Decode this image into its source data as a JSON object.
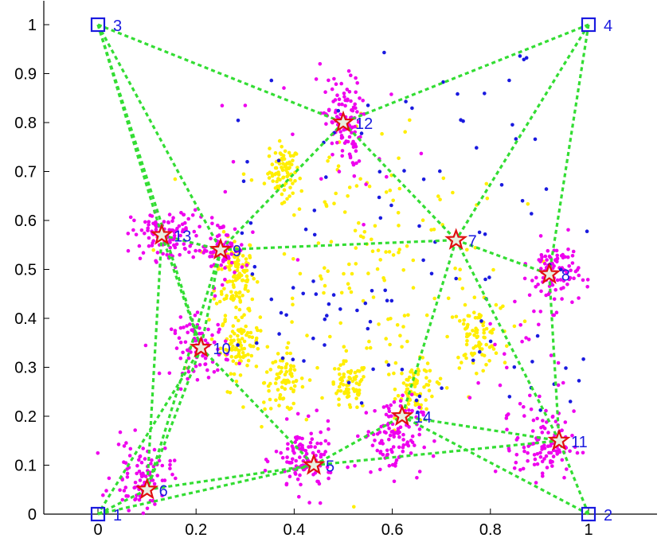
{
  "chart_data": {
    "type": "scatter",
    "title": "",
    "xlabel": "",
    "ylabel": "",
    "xlim": [
      -0.15,
      1.1
    ],
    "ylim": [
      0,
      1
    ],
    "x_ticks": [
      "0",
      "0.2",
      "0.4",
      "0.6",
      "0.8",
      "1"
    ],
    "x_tick_values": [
      0,
      0.2,
      0.4,
      0.6,
      0.8,
      1
    ],
    "y_ticks": [
      "0",
      "0.1",
      "0.2",
      "0.3",
      "0.4",
      "0.5",
      "0.6",
      "0.7",
      "0.8",
      "0.9",
      "1"
    ],
    "y_tick_values": [
      0,
      0.1,
      0.2,
      0.3,
      0.4,
      0.5,
      0.6,
      0.7,
      0.8,
      0.9,
      1
    ],
    "grid": false,
    "colors": {
      "anchor": "#1a1adf",
      "estimated_star_stroke": "#e01010",
      "estimated_star_fill": "#e8f0e0",
      "edges": "#33dd33",
      "cloud_magenta": "#ee00ee",
      "cloud_yellow": "#ffee00",
      "cloud_blue": "#1a1adf"
    },
    "anchors": [
      {
        "label": "1",
        "x": 0.0,
        "y": 0.0
      },
      {
        "label": "2",
        "x": 1.0,
        "y": 0.0
      },
      {
        "label": "3",
        "x": 0.0,
        "y": 1.0
      },
      {
        "label": "4",
        "x": 1.0,
        "y": 1.0
      }
    ],
    "estimated_nodes": [
      {
        "label": "5",
        "x": 0.44,
        "y": 0.1
      },
      {
        "label": "6",
        "x": 0.1,
        "y": 0.05
      },
      {
        "label": "7",
        "x": 0.73,
        "y": 0.56
      },
      {
        "label": "8",
        "x": 0.92,
        "y": 0.49
      },
      {
        "label": "9",
        "x": 0.25,
        "y": 0.54
      },
      {
        "label": "10",
        "x": 0.21,
        "y": 0.34
      },
      {
        "label": "11",
        "x": 0.94,
        "y": 0.15
      },
      {
        "label": "12",
        "x": 0.5,
        "y": 0.8
      },
      {
        "label": "13",
        "x": 0.13,
        "y": 0.57
      },
      {
        "label": "14",
        "x": 0.62,
        "y": 0.2
      }
    ],
    "edges": [
      [
        "3",
        "12"
      ],
      [
        "4",
        "12"
      ],
      [
        "3",
        "13"
      ],
      [
        "3",
        "9"
      ],
      [
        "3",
        "10"
      ],
      [
        "4",
        "7"
      ],
      [
        "4",
        "8"
      ],
      [
        "12",
        "9"
      ],
      [
        "12",
        "7"
      ],
      [
        "13",
        "9"
      ],
      [
        "13",
        "10"
      ],
      [
        "13",
        "6"
      ],
      [
        "9",
        "7"
      ],
      [
        "9",
        "10"
      ],
      [
        "9",
        "6"
      ],
      [
        "7",
        "8"
      ],
      [
        "7",
        "11"
      ],
      [
        "7",
        "14"
      ],
      [
        "8",
        "11"
      ],
      [
        "10",
        "5"
      ],
      [
        "10",
        "6"
      ],
      [
        "10",
        "1"
      ],
      [
        "6",
        "5"
      ],
      [
        "6",
        "1"
      ],
      [
        "1",
        "5"
      ],
      [
        "5",
        "14"
      ],
      [
        "5",
        "11"
      ],
      [
        "14",
        "11"
      ],
      [
        "2",
        "11"
      ],
      [
        "2",
        "14"
      ]
    ],
    "magenta_clusters": [
      {
        "x": 0.5,
        "y": 0.8,
        "sx": 0.018,
        "sy": 0.045,
        "n": 110
      },
      {
        "x": 0.14,
        "y": 0.57,
        "sx": 0.035,
        "sy": 0.025,
        "n": 110
      },
      {
        "x": 0.25,
        "y": 0.54,
        "sx": 0.025,
        "sy": 0.03,
        "n": 70
      },
      {
        "x": 0.21,
        "y": 0.34,
        "sx": 0.03,
        "sy": 0.03,
        "n": 90
      },
      {
        "x": 0.93,
        "y": 0.49,
        "sx": 0.025,
        "sy": 0.035,
        "n": 100
      },
      {
        "x": 0.42,
        "y": 0.11,
        "sx": 0.03,
        "sy": 0.035,
        "n": 110
      },
      {
        "x": 0.09,
        "y": 0.08,
        "sx": 0.03,
        "sy": 0.035,
        "n": 90
      },
      {
        "x": 0.6,
        "y": 0.16,
        "sx": 0.03,
        "sy": 0.04,
        "n": 110
      },
      {
        "x": 0.91,
        "y": 0.14,
        "sx": 0.03,
        "sy": 0.035,
        "n": 100
      },
      {
        "x": 0.45,
        "y": 0.76,
        "sx": 0.12,
        "sy": 0.1,
        "n": 20
      },
      {
        "x": 0.85,
        "y": 0.3,
        "sx": 0.05,
        "sy": 0.1,
        "n": 25
      }
    ],
    "yellow_clusters": [
      {
        "x": 0.38,
        "y": 0.7,
        "sx": 0.015,
        "sy": 0.025,
        "n": 80
      },
      {
        "x": 0.28,
        "y": 0.49,
        "sx": 0.02,
        "sy": 0.04,
        "n": 110
      },
      {
        "x": 0.29,
        "y": 0.35,
        "sx": 0.02,
        "sy": 0.03,
        "n": 100
      },
      {
        "x": 0.38,
        "y": 0.27,
        "sx": 0.02,
        "sy": 0.03,
        "n": 70
      },
      {
        "x": 0.51,
        "y": 0.26,
        "sx": 0.02,
        "sy": 0.025,
        "n": 70
      },
      {
        "x": 0.65,
        "y": 0.26,
        "sx": 0.02,
        "sy": 0.025,
        "n": 70
      },
      {
        "x": 0.77,
        "y": 0.36,
        "sx": 0.025,
        "sy": 0.03,
        "n": 80
      },
      {
        "x": 0.55,
        "y": 0.5,
        "sx": 0.15,
        "sy": 0.17,
        "n": 170
      }
    ],
    "blue_scatter": {
      "xmin": 0.27,
      "xmax": 1.0,
      "ymin": 0.2,
      "ymax": 0.96,
      "n": 110
    }
  }
}
